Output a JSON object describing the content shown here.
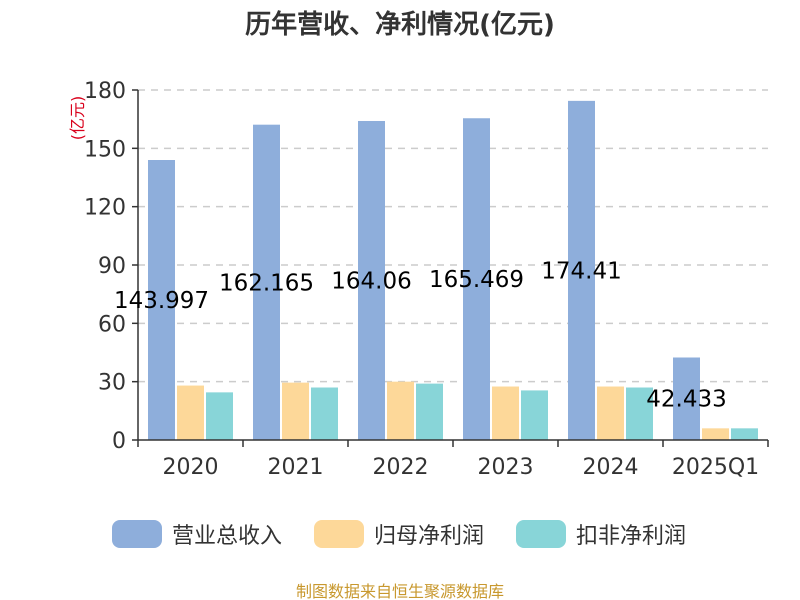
{
  "chart_data": {
    "type": "bar",
    "title": "历年营收、净利情况(亿元)",
    "unit_label": "(亿元)",
    "categories": [
      "2020",
      "2021",
      "2022",
      "2023",
      "2024",
      "2025Q1"
    ],
    "series": [
      {
        "name": "营业总收入",
        "color": "#8eaedb",
        "values": [
          143.997,
          162.165,
          164.06,
          165.469,
          174.41,
          42.433
        ]
      },
      {
        "name": "归母净利润",
        "color": "#fdd899",
        "values": [
          28,
          29.5,
          30,
          27.5,
          27.5,
          6
        ]
      },
      {
        "name": "扣非净利润",
        "color": "#88d5d8",
        "values": [
          24.5,
          27,
          29,
          25.5,
          27,
          6
        ]
      }
    ],
    "data_labels": [
      "143.997",
      "162.165",
      "164.06",
      "165.469",
      "174.41",
      "42.433"
    ],
    "ylim": [
      0,
      180
    ],
    "yticks": [
      0,
      30,
      60,
      90,
      120,
      150,
      180
    ],
    "grid": true,
    "legend_position": "bottom"
  },
  "footer": "制图数据来自恒生聚源数据库"
}
